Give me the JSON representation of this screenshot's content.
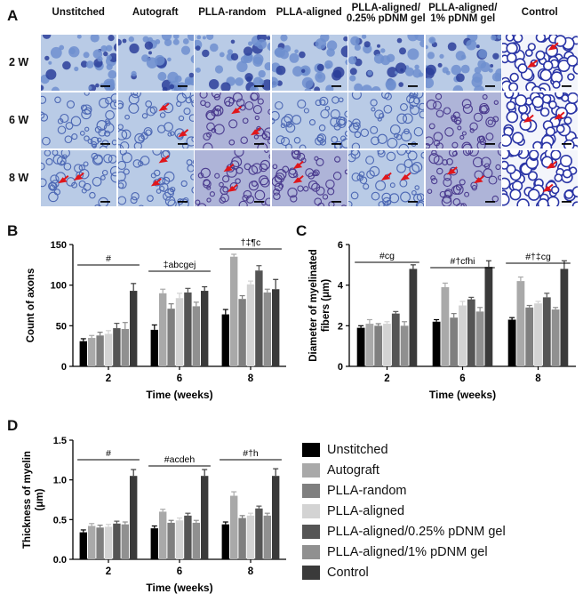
{
  "panels": [
    "A",
    "B",
    "C",
    "D"
  ],
  "micrograph_columns": [
    "Unstitched",
    "Autograft",
    "PLLA-random",
    "PLLA-aligned",
    "PLLA-aligned/\n0.25% pDNM gel",
    "PLLA-aligned/\n1% pDNM gel",
    "Control"
  ],
  "micrograph_rows": [
    "2 W",
    "6 W",
    "8 W"
  ],
  "groups": [
    "Unstitched",
    "Autograft",
    "PLLA-random",
    "PLLA-aligned",
    "PLLA-aligned/0.25% pDNM gel",
    "PLLA-aligned/1% pDNM gel",
    "Control"
  ],
  "colors": {
    "Unstitched": "#000000",
    "Autograft": "#a9a9a9",
    "PLLA-random": "#7f7f7f",
    "PLLA-aligned": "#d3d3d3",
    "PLLA-aligned/0.25% pDNM gel": "#555555",
    "PLLA-aligned/1% pDNM gel": "#909090",
    "Control": "#3a3a3a"
  },
  "chart_data": [
    {
      "type": "bar",
      "panel": "B",
      "xlabel": "Time (weeks)",
      "ylabel": "Count of axons",
      "categories": [
        "2",
        "6",
        "8"
      ],
      "ylim": [
        0,
        150
      ],
      "yticks": [
        "0",
        "50",
        "100",
        "150"
      ],
      "series": [
        {
          "name": "Unstitched",
          "values": [
            31,
            45,
            64
          ],
          "errors": [
            3,
            6,
            6
          ]
        },
        {
          "name": "Autograft",
          "values": [
            35,
            90,
            135
          ],
          "errors": [
            3,
            5,
            3
          ]
        },
        {
          "name": "PLLA-random",
          "values": [
            38,
            71,
            83
          ],
          "errors": [
            4,
            6,
            4
          ]
        },
        {
          "name": "PLLA-aligned",
          "values": [
            40,
            84,
            101
          ],
          "errors": [
            4,
            6,
            4
          ]
        },
        {
          "name": "PLLA-aligned/0.25% pDNM gel",
          "values": [
            47,
            91,
            118
          ],
          "errors": [
            6,
            5,
            6
          ]
        },
        {
          "name": "PLLA-aligned/1% pDNM gel",
          "values": [
            46,
            74,
            91
          ],
          "errors": [
            8,
            5,
            4
          ]
        },
        {
          "name": "Control",
          "values": [
            93,
            93,
            95
          ],
          "errors": [
            9,
            5,
            12
          ]
        }
      ],
      "annotations": [
        "#",
        "‡abcgej",
        "†‡¶c"
      ]
    },
    {
      "type": "bar",
      "panel": "C",
      "xlabel": "Time (weeks)",
      "ylabel": "Diameter of myelinated fibers (μm)",
      "ylabel_lines": [
        "Diameter of myelinated",
        "fibers (μm)"
      ],
      "categories": [
        "2",
        "6",
        "8"
      ],
      "ylim": [
        0,
        6
      ],
      "yticks": [
        "0",
        "2",
        "4",
        "6"
      ],
      "series": [
        {
          "name": "Unstitched",
          "values": [
            1.9,
            2.2,
            2.3
          ],
          "errors": [
            0.1,
            0.1,
            0.1
          ]
        },
        {
          "name": "Autograft",
          "values": [
            2.1,
            3.9,
            4.2
          ],
          "errors": [
            0.2,
            0.2,
            0.2
          ]
        },
        {
          "name": "PLLA-random",
          "values": [
            2.0,
            2.4,
            2.9
          ],
          "errors": [
            0.1,
            0.2,
            0.1
          ]
        },
        {
          "name": "PLLA-aligned",
          "values": [
            2.1,
            3.0,
            3.1
          ],
          "errors": [
            0.1,
            0.2,
            0.1
          ]
        },
        {
          "name": "PLLA-aligned/0.25% pDNM gel",
          "values": [
            2.6,
            3.3,
            3.4
          ],
          "errors": [
            0.1,
            0.1,
            0.2
          ]
        },
        {
          "name": "PLLA-aligned/1% pDNM gel",
          "values": [
            2.0,
            2.7,
            2.8
          ],
          "errors": [
            0.2,
            0.2,
            0.1
          ]
        },
        {
          "name": "Control",
          "values": [
            4.8,
            4.9,
            4.8
          ],
          "errors": [
            0.2,
            0.3,
            0.4
          ]
        }
      ],
      "annotations": [
        "#cg",
        "#†cfhi",
        "#†‡cg"
      ]
    },
    {
      "type": "bar",
      "panel": "D",
      "xlabel": "Time (weeks)",
      "ylabel": "Thickness of myelin (μm)",
      "ylabel_lines": [
        "Thickness of myelin",
        "(μm)"
      ],
      "categories": [
        "2",
        "6",
        "8"
      ],
      "ylim": [
        0,
        1.5
      ],
      "yticks": [
        "0.0",
        "0.5",
        "1.0",
        "1.5"
      ],
      "series": [
        {
          "name": "Unstitched",
          "values": [
            0.34,
            0.39,
            0.44
          ],
          "errors": [
            0.03,
            0.03,
            0.03
          ]
        },
        {
          "name": "Autograft",
          "values": [
            0.42,
            0.6,
            0.8
          ],
          "errors": [
            0.03,
            0.03,
            0.05
          ]
        },
        {
          "name": "PLLA-random",
          "values": [
            0.4,
            0.46,
            0.52
          ],
          "errors": [
            0.03,
            0.03,
            0.03
          ]
        },
        {
          "name": "PLLA-aligned",
          "values": [
            0.41,
            0.49,
            0.55
          ],
          "errors": [
            0.03,
            0.03,
            0.03
          ]
        },
        {
          "name": "PLLA-aligned/0.25% pDNM gel",
          "values": [
            0.45,
            0.55,
            0.64
          ],
          "errors": [
            0.03,
            0.03,
            0.03
          ]
        },
        {
          "name": "PLLA-aligned/1% pDNM gel",
          "values": [
            0.44,
            0.46,
            0.55
          ],
          "errors": [
            0.03,
            0.03,
            0.03
          ]
        },
        {
          "name": "Control",
          "values": [
            1.05,
            1.05,
            1.05
          ],
          "errors": [
            0.08,
            0.08,
            0.09
          ]
        }
      ],
      "annotations": [
        "#",
        "#acdeh",
        "#†h"
      ]
    }
  ]
}
